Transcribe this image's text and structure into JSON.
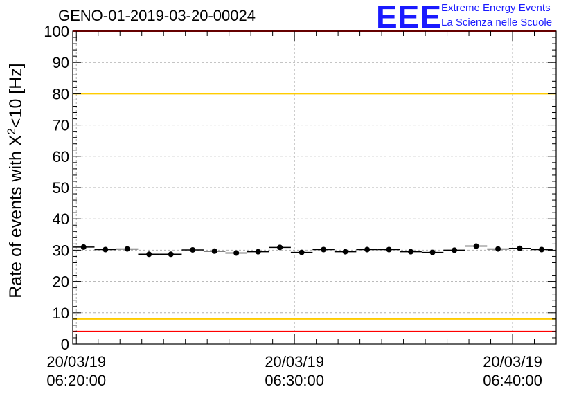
{
  "title": "GENO-01-2019-03-20-00024",
  "logo": {
    "mark": "EEE",
    "line1": "Extreme Energy Events",
    "line2": "La Scienza nelle Scuole",
    "color": "#1a1aff"
  },
  "chart_data": {
    "type": "scatter",
    "title": "GENO-01-2019-03-20-00024",
    "ylabel": "Rate of events with X²<10 [Hz]",
    "ylabel_parts": {
      "pre": "Rate of events with X",
      "sup": "2",
      "post": "<10 [Hz]"
    },
    "xlabel": "",
    "x_unit": "minutes",
    "xlim": [
      "06:19:50",
      "06:42:00"
    ],
    "ylim": [
      0,
      100
    ],
    "y_ticks": [
      0,
      10,
      20,
      30,
      40,
      50,
      60,
      70,
      80,
      90,
      100
    ],
    "x_ticks": [
      {
        "at": "06:20:00",
        "date": "20/03/19",
        "time": "06:20:00"
      },
      {
        "at": "06:30:00",
        "date": "20/03/19",
        "time": "06:30:00"
      },
      {
        "at": "06:40:00",
        "date": "20/03/19",
        "time": "06:40:00"
      }
    ],
    "grid": true,
    "points": [
      {
        "x": "06:20:20",
        "y": 31.0
      },
      {
        "x": "06:21:20",
        "y": 30.2
      },
      {
        "x": "06:22:20",
        "y": 30.4
      },
      {
        "x": "06:23:20",
        "y": 28.7
      },
      {
        "x": "06:24:20",
        "y": 28.7
      },
      {
        "x": "06:25:20",
        "y": 30.1
      },
      {
        "x": "06:26:20",
        "y": 29.7
      },
      {
        "x": "06:27:20",
        "y": 29.1
      },
      {
        "x": "06:28:20",
        "y": 29.5
      },
      {
        "x": "06:29:20",
        "y": 30.9
      },
      {
        "x": "06:30:20",
        "y": 29.3
      },
      {
        "x": "06:31:20",
        "y": 30.2
      },
      {
        "x": "06:32:20",
        "y": 29.5
      },
      {
        "x": "06:33:20",
        "y": 30.2
      },
      {
        "x": "06:34:20",
        "y": 30.2
      },
      {
        "x": "06:35:20",
        "y": 29.5
      },
      {
        "x": "06:36:20",
        "y": 29.3
      },
      {
        "x": "06:37:20",
        "y": 30.0
      },
      {
        "x": "06:38:20",
        "y": 31.3
      },
      {
        "x": "06:39:20",
        "y": 30.4
      },
      {
        "x": "06:40:20",
        "y": 30.6
      },
      {
        "x": "06:41:20",
        "y": 30.2
      }
    ],
    "reference_lines": [
      {
        "y": 100,
        "color": "#ff0000"
      },
      {
        "y": 80,
        "color": "#ffcc00"
      },
      {
        "y": 8,
        "color": "#ffcc00"
      },
      {
        "y": 4,
        "color": "#ff0000"
      }
    ],
    "marker_color": "#000000"
  }
}
